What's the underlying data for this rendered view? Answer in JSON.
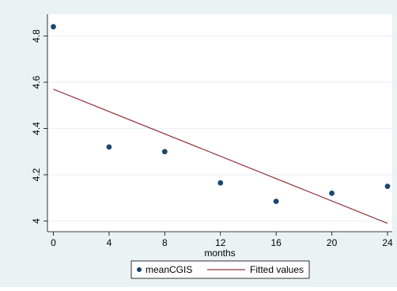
{
  "chart_data": {
    "type": "scatter",
    "xlabel": "months",
    "ylabel": "",
    "xlim": [
      0,
      24
    ],
    "ylim": [
      4,
      4.8
    ],
    "x_ticks": [
      0,
      4,
      8,
      12,
      16,
      20,
      24
    ],
    "y_ticks": [
      4,
      4.2,
      4.4,
      4.6,
      4.8
    ],
    "x_tick_labels": [
      "0",
      "4",
      "8",
      "12",
      "16",
      "20",
      "24"
    ],
    "y_tick_labels": [
      "4",
      "4.2",
      "4.4",
      "4.6",
      "4.8"
    ],
    "grid": true,
    "legend_position": "bottom",
    "series": [
      {
        "name": "meanCGIS",
        "kind": "scatter",
        "color": "#1a476f",
        "x": [
          0,
          4,
          8,
          12,
          16,
          20,
          24
        ],
        "y": [
          4.84,
          4.32,
          4.3,
          4.165,
          4.085,
          4.12,
          4.15
        ]
      },
      {
        "name": "Fitted values",
        "kind": "line",
        "color": "#90353b",
        "x": [
          0,
          24
        ],
        "y": [
          4.57,
          3.99
        ]
      }
    ],
    "colors": {
      "outer_background": "#eaf2f3",
      "plot_background": "#ffffff",
      "grid": "#eaf2f3"
    }
  }
}
